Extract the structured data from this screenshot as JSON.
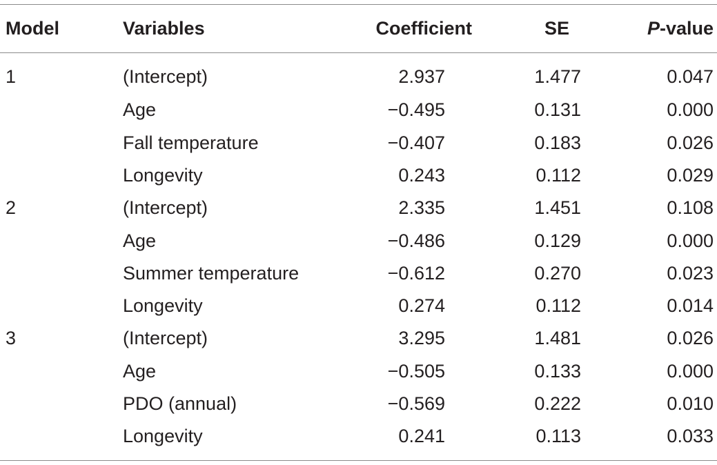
{
  "table": {
    "headers": {
      "model": "Model",
      "variables": "Variables",
      "coefficient": "Coefficient",
      "se": "SE",
      "p_italic": "P",
      "p_rest": "-value"
    },
    "rows": [
      {
        "model": "1",
        "variable": "(Intercept)",
        "coefficient": "2.937",
        "se": "1.477",
        "p": "0.047"
      },
      {
        "model": "",
        "variable": "Age",
        "coefficient": "−0.495",
        "se": "0.131",
        "p": "0.000"
      },
      {
        "model": "",
        "variable": "Fall temperature",
        "coefficient": "−0.407",
        "se": "0.183",
        "p": "0.026"
      },
      {
        "model": "",
        "variable": "Longevity",
        "coefficient": "0.243",
        "se": "0.112",
        "p": "0.029"
      },
      {
        "model": "2",
        "variable": "(Intercept)",
        "coefficient": "2.335",
        "se": "1.451",
        "p": "0.108"
      },
      {
        "model": "",
        "variable": "Age",
        "coefficient": "−0.486",
        "se": "0.129",
        "p": "0.000"
      },
      {
        "model": "",
        "variable": "Summer temperature",
        "coefficient": "−0.612",
        "se": "0.270",
        "p": "0.023"
      },
      {
        "model": "",
        "variable": "Longevity",
        "coefficient": "0.274",
        "se": "0.112",
        "p": "0.014"
      },
      {
        "model": "3",
        "variable": "(Intercept)",
        "coefficient": "3.295",
        "se": "1.481",
        "p": "0.026"
      },
      {
        "model": "",
        "variable": "Age",
        "coefficient": "−0.505",
        "se": "0.133",
        "p": "0.000"
      },
      {
        "model": "",
        "variable": "PDO (annual)",
        "coefficient": "−0.569",
        "se": "0.222",
        "p": "0.010"
      },
      {
        "model": "",
        "variable": "Longevity",
        "coefficient": "0.241",
        "se": "0.113",
        "p": "0.033"
      }
    ]
  }
}
